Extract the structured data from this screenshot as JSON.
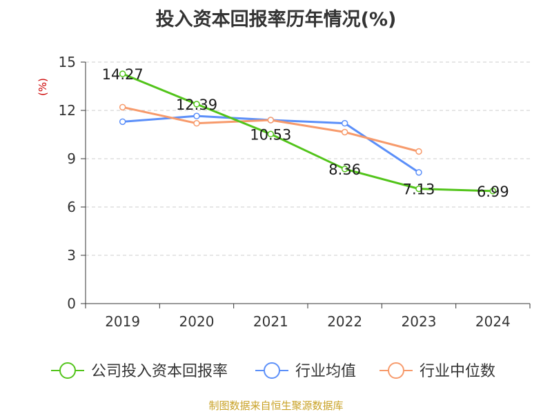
{
  "chart_data": {
    "type": "line",
    "title": "投入资本回报率历年情况(%)",
    "ylabel": "(%)",
    "xlabel": "",
    "categories": [
      "2019",
      "2020",
      "2021",
      "2022",
      "2023",
      "2024"
    ],
    "ylim": [
      0,
      15
    ],
    "yticks": [
      0,
      3,
      6,
      9,
      12,
      15
    ],
    "grid": true,
    "legend_position": "bottom",
    "series": [
      {
        "name": "公司投入资本回报率",
        "color": "#52c41a",
        "values": [
          14.27,
          12.39,
          10.53,
          8.36,
          7.13,
          6.99
        ],
        "labels": [
          "14.27",
          "12.39",
          "10.53",
          "8.36",
          "7.13",
          "6.99"
        ]
      },
      {
        "name": "行业均值",
        "color": "#5b8ff9",
        "values": [
          11.3,
          11.65,
          11.4,
          11.2,
          8.15,
          null
        ]
      },
      {
        "name": "行业中位数",
        "color": "#f79a6b",
        "values": [
          12.2,
          11.2,
          11.4,
          10.65,
          9.45,
          null
        ]
      }
    ]
  },
  "footer": "制图数据来自恒生聚源数据库"
}
